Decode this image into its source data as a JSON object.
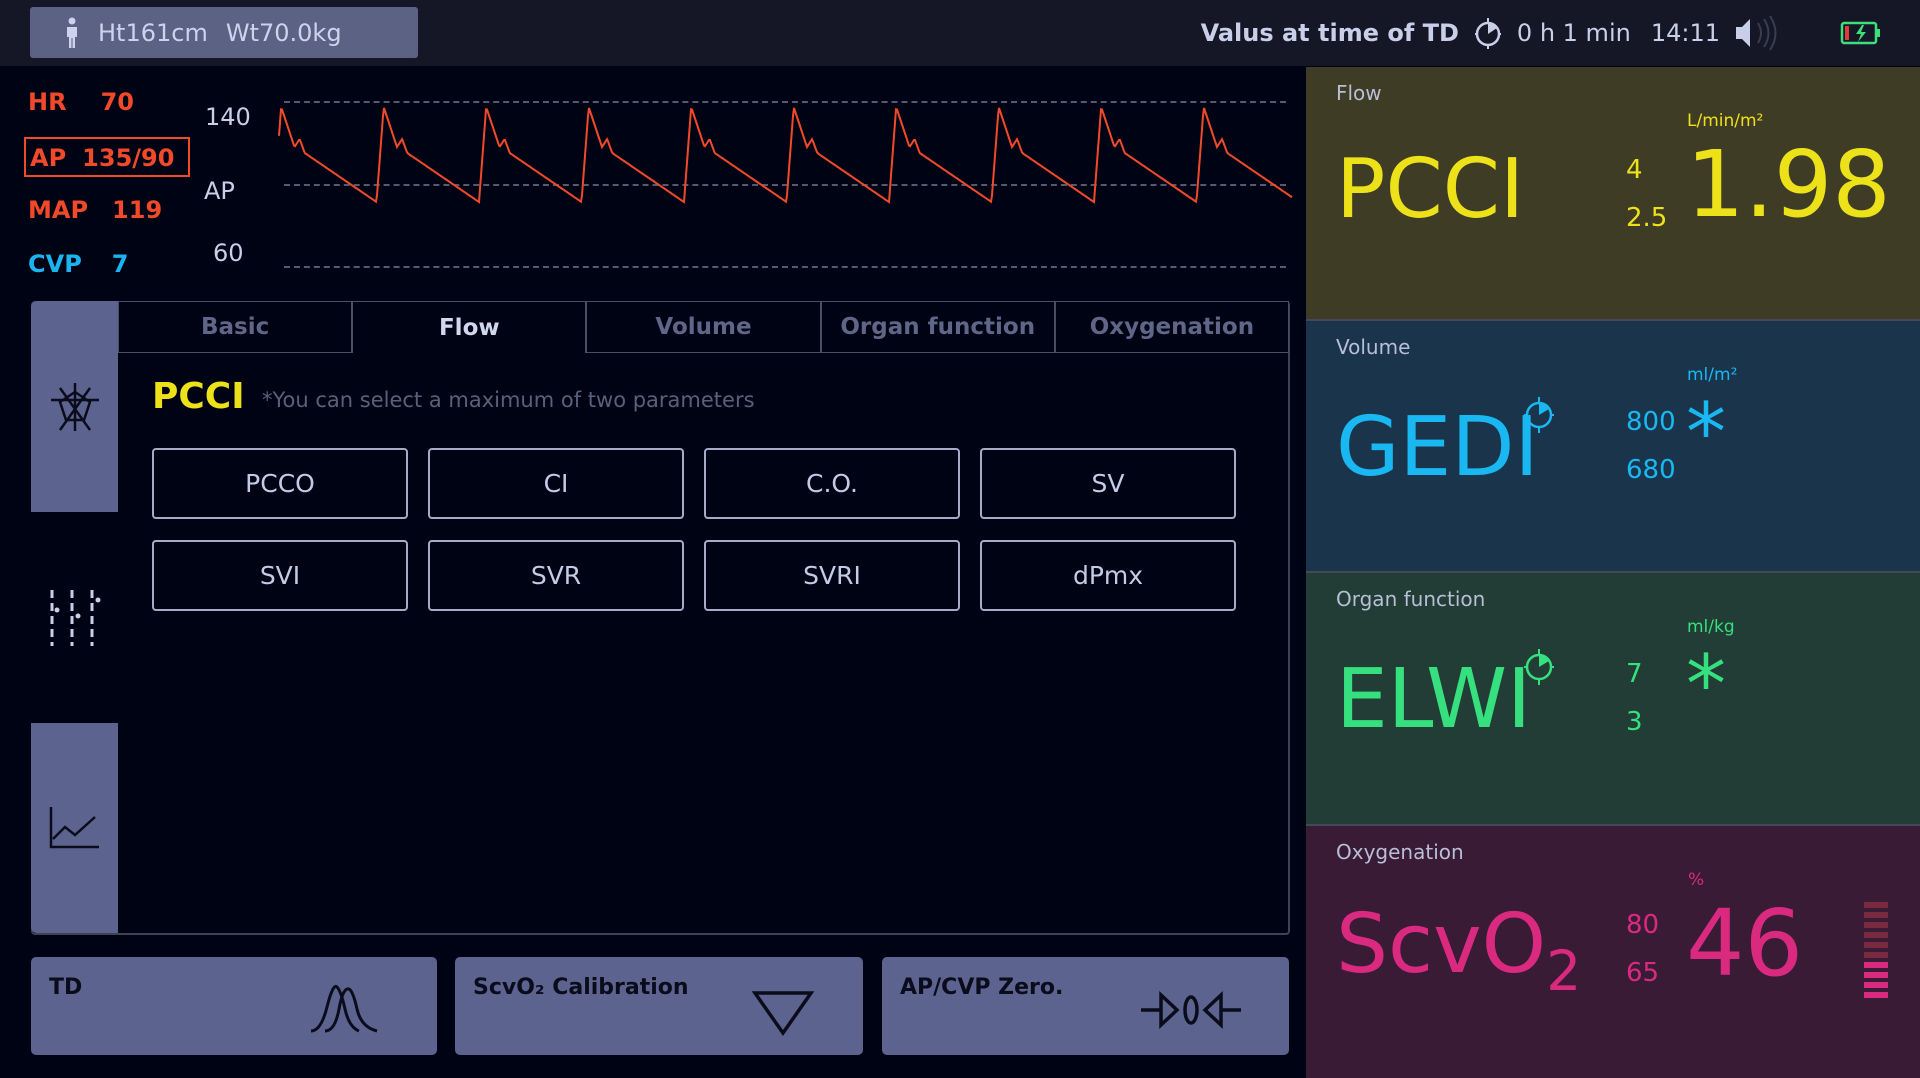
{
  "header": {
    "patient_height": "Ht161cm",
    "patient_weight": "Wt70.0kg",
    "status_label": "Valus at time of TD",
    "elapsed": "0 h 1 min",
    "time": "14:11"
  },
  "vitals": {
    "hr_label": "HR",
    "hr_value": "70",
    "ap_label": "AP",
    "ap_value": "135/90",
    "map_label": "MAP",
    "map_value": "119",
    "cvp_label": "CVP",
    "cvp_value": "7",
    "colors": {
      "ap": "#f04a2a",
      "cvp": "#1ab4f0"
    }
  },
  "waveform": {
    "scale_high": "140",
    "label": "AP",
    "scale_low": "60"
  },
  "tabs": [
    {
      "label": "Basic"
    },
    {
      "label": "Flow"
    },
    {
      "label": "Volume"
    },
    {
      "label": "Organ function"
    },
    {
      "label": "Oxygenation"
    }
  ],
  "active_tab": "Flow",
  "selection": {
    "title": "PCCI",
    "hint": "*You can select a maximum of two parameters",
    "params": [
      "PCCO",
      "CI",
      "C.O.",
      "SV",
      "SVI",
      "SVR",
      "SVRI",
      "dPmx"
    ]
  },
  "actions": {
    "td": "TD",
    "scvo2": "ScvO₂ Calibration",
    "zero": "AP/CVP Zero."
  },
  "panels": {
    "flow": {
      "title": "Flow",
      "name": "PCCI",
      "high": "4",
      "low": "2.5",
      "unit": "L/min/m²",
      "value": "1.98",
      "color": "#ede21a"
    },
    "volume": {
      "title": "Volume",
      "name": "GEDI",
      "high": "800",
      "low": "680",
      "unit": "ml/m²",
      "value": "*",
      "color": "#1ab8f2"
    },
    "organ": {
      "title": "Organ function",
      "name": "ELWI",
      "high": "7",
      "low": "3",
      "unit": "ml/kg",
      "value": "*",
      "color": "#36e07e"
    },
    "oxygenation": {
      "title": "Oxygenation",
      "name": "ScvO",
      "name_sub": "2",
      "high": "80",
      "low": "65",
      "unit": "%",
      "value": "46",
      "color": "#d92a80",
      "level_bars_lit": 4,
      "level_bars_total": 10
    }
  }
}
